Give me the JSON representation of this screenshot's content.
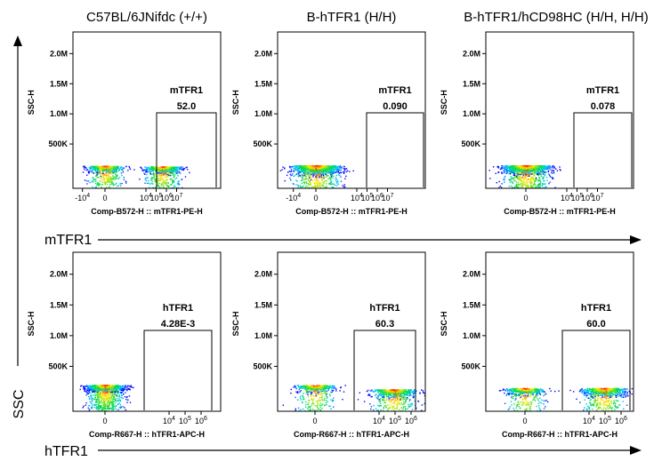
{
  "col_titles": [
    "C57BL/6JNifdc (+/+)",
    "B-hTFR1 (H/H)",
    "B-hTFR1/hCD98HC (H/H, H/H)"
  ],
  "side_label": "SSC",
  "row_labels": [
    "mTFR1",
    "hTFR1"
  ],
  "colors": {
    "axis": "#000000",
    "density_low": "#0000ff",
    "density_high": "#ff0000"
  },
  "chart_data": [
    {
      "type": "scatter",
      "row": 0,
      "col": 0,
      "ylabel": "SSC-H",
      "xlabel": "Comp-B572-H :: mTFR1-PE-H",
      "ytick_labels": [
        "500K",
        "1.0M",
        "1.5M",
        "2.0M"
      ],
      "xtick_labels": [
        "-10^4",
        "0",
        "10^4",
        "10^5",
        "10^6",
        "10^7"
      ],
      "gate_name": "mTFR1",
      "gate_value": "52.0",
      "populations": [
        {
          "x": 0,
          "y": 140000,
          "weight": 0.5,
          "spread": 0.3
        },
        {
          "x": 5.6,
          "y": 130000,
          "weight": 0.5,
          "spread": 0.3
        }
      ]
    },
    {
      "type": "scatter",
      "row": 0,
      "col": 1,
      "ylabel": "SSC-H",
      "xlabel": "Comp-B572-H :: mTFR1-PE-H",
      "ytick_labels": [
        "500K",
        "1.0M",
        "1.5M",
        "2.0M"
      ],
      "xtick_labels": [
        "-10^4",
        "0",
        "10^4",
        "10^5",
        "10^6",
        "10^7"
      ],
      "gate_name": "mTFR1",
      "gate_value": "0.090",
      "populations": [
        {
          "x": 0,
          "y": 150000,
          "weight": 1.0,
          "spread": 0.55
        }
      ]
    },
    {
      "type": "scatter",
      "row": 0,
      "col": 2,
      "ylabel": "SSC-H",
      "xlabel": "Comp-B572-H :: mTFR1-PE-H",
      "ytick_labels": [
        "500K",
        "1.0M",
        "1.5M",
        "2.0M"
      ],
      "xtick_labels": [
        "0",
        "10^4",
        "10^5",
        "10^6",
        "10^7"
      ],
      "gate_name": "mTFR1",
      "gate_value": "0.078",
      "populations": [
        {
          "x": 0,
          "y": 150000,
          "weight": 1.0,
          "spread": 0.5
        }
      ]
    },
    {
      "type": "scatter",
      "row": 1,
      "col": 0,
      "ylabel": "SSC-H",
      "xlabel": "Comp-R667-H :: hTFR1-APC-H",
      "ytick_labels": [
        "500K",
        "1.0M",
        "1.5M",
        "2.0M"
      ],
      "xtick_labels": [
        "0",
        "10^4",
        "10^5",
        "10^6"
      ],
      "gate_name": "hTFR1",
      "gate_value": "4.28E-3",
      "populations": [
        {
          "x": 0,
          "y": 200000,
          "weight": 1.0,
          "spread": 0.3
        }
      ]
    },
    {
      "type": "scatter",
      "row": 1,
      "col": 1,
      "ylabel": "SSC-H",
      "xlabel": "Comp-R667-H :: hTFR1-APC-H",
      "ytick_labels": [
        "500K",
        "1.0M",
        "1.5M",
        "2.0M"
      ],
      "xtick_labels": [
        "0",
        "10^4",
        "10^5",
        "10^6"
      ],
      "gate_name": "hTFR1",
      "gate_value": "60.3",
      "populations": [
        {
          "x": 0,
          "y": 200000,
          "weight": 0.4,
          "spread": 0.35
        },
        {
          "x": 4.9,
          "y": 130000,
          "weight": 0.6,
          "spread": 0.45
        }
      ]
    },
    {
      "type": "scatter",
      "row": 1,
      "col": 2,
      "ylabel": "SSC-H",
      "xlabel": "Comp-R667-H :: hTFR1-APC-H",
      "ytick_labels": [
        "500K",
        "1.0M",
        "1.5M",
        "2.0M"
      ],
      "xtick_labels": [
        "0",
        "10^4",
        "10^5",
        "10^6"
      ],
      "gate_name": "hTFR1",
      "gate_value": "60.0",
      "populations": [
        {
          "x": 0,
          "y": 150000,
          "weight": 0.4,
          "spread": 0.35
        },
        {
          "x": 4.9,
          "y": 150000,
          "weight": 0.6,
          "spread": 0.45
        }
      ]
    }
  ]
}
